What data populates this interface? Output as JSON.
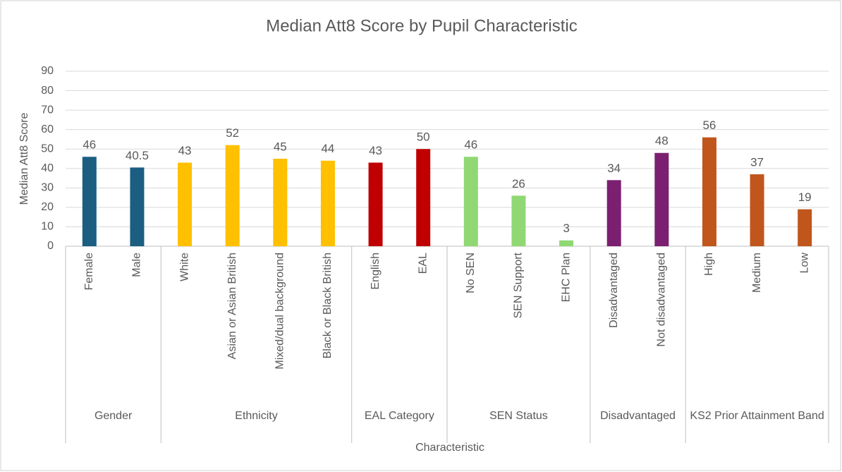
{
  "chart_data": {
    "type": "bar",
    "title": "Median Att8 Score by Pupil Characteristic",
    "x_label": "Characteristic",
    "y_label": "Median Att8 Score",
    "ylim": [
      0,
      90
    ],
    "yticks": [
      0,
      10,
      20,
      30,
      40,
      50,
      60,
      70,
      80,
      90
    ],
    "grid": true,
    "groups": [
      {
        "name": "Gender",
        "color": "#1b5e82",
        "categories": [
          "Female",
          "Male"
        ],
        "values": [
          46,
          40.5
        ]
      },
      {
        "name": "Ethnicity",
        "color": "#ffc000",
        "categories": [
          "White",
          "Asian or Asian British",
          "Mixed/dual background",
          "Black or Black British"
        ],
        "values": [
          43,
          52,
          45,
          44
        ]
      },
      {
        "name": "EAL Category",
        "color": "#c00000",
        "categories": [
          "English",
          "EAL"
        ],
        "values": [
          43,
          50
        ]
      },
      {
        "name": "SEN Status",
        "color": "#8fd873",
        "categories": [
          "No SEN",
          "SEN Support",
          "EHC Plan"
        ],
        "values": [
          46,
          26,
          3
        ]
      },
      {
        "name": "Disadvantaged",
        "color": "#7b2070",
        "categories": [
          "Disadvantaged",
          "Not disadvantaged"
        ],
        "values": [
          34,
          48
        ]
      },
      {
        "name": "KS2 Prior Attainment Band",
        "color": "#c0561b",
        "categories": [
          "High",
          "Medium",
          "Low"
        ],
        "values": [
          56,
          37,
          19
        ]
      }
    ]
  }
}
